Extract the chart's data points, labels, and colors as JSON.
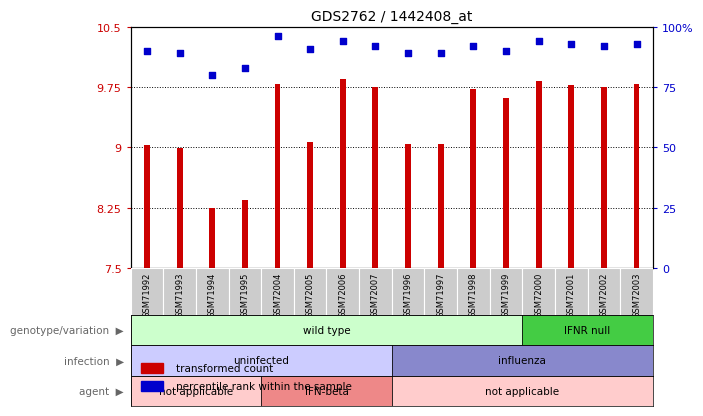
{
  "title": "GDS2762 / 1442408_at",
  "samples": [
    "GSM71992",
    "GSM71993",
    "GSM71994",
    "GSM71995",
    "GSM72004",
    "GSM72005",
    "GSM72006",
    "GSM72007",
    "GSM71996",
    "GSM71997",
    "GSM71998",
    "GSM71999",
    "GSM72000",
    "GSM72001",
    "GSM72002",
    "GSM72003"
  ],
  "transformed_count": [
    9.03,
    8.99,
    8.25,
    8.35,
    9.79,
    9.06,
    9.85,
    9.75,
    9.04,
    9.04,
    9.72,
    9.61,
    9.82,
    9.78,
    9.75,
    9.79
  ],
  "percentile_rank": [
    90,
    89,
    80,
    83,
    96,
    91,
    94,
    92,
    89,
    89,
    92,
    90,
    94,
    93,
    92,
    93
  ],
  "ylim_left": [
    7.5,
    10.5
  ],
  "ylim_right": [
    0,
    100
  ],
  "yticks_left": [
    7.5,
    8.25,
    9.0,
    9.75,
    10.5
  ],
  "yticks_right": [
    0,
    25,
    50,
    75,
    100
  ],
  "ytick_labels_left": [
    "7.5",
    "8.25",
    "9",
    "9.75",
    "10.5"
  ],
  "ytick_labels_right": [
    "0",
    "25",
    "50",
    "75",
    "100%"
  ],
  "bar_color": "#cc0000",
  "dot_color": "#0000cc",
  "background_color": "#ffffff",
  "xtick_bg_color": "#cccccc",
  "genotype_variation": [
    {
      "label": "wild type",
      "start": 0,
      "end": 12,
      "color": "#ccffcc"
    },
    {
      "label": "IFNR null",
      "start": 12,
      "end": 16,
      "color": "#44cc44"
    }
  ],
  "infection": [
    {
      "label": "uninfected",
      "start": 0,
      "end": 8,
      "color": "#ccccff"
    },
    {
      "label": "influenza",
      "start": 8,
      "end": 16,
      "color": "#8888cc"
    }
  ],
  "agent": [
    {
      "label": "not applicable",
      "start": 0,
      "end": 4,
      "color": "#ffcccc"
    },
    {
      "label": "IFN-beta",
      "start": 4,
      "end": 8,
      "color": "#ee8888"
    },
    {
      "label": "not applicable",
      "start": 8,
      "end": 16,
      "color": "#ffcccc"
    }
  ],
  "row_labels": [
    "genotype/variation",
    "infection",
    "agent"
  ]
}
